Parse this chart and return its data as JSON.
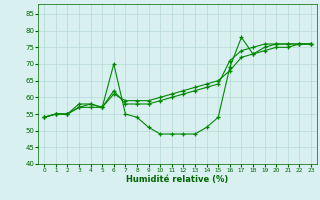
{
  "title": "",
  "xlabel": "Humidité relative (%)",
  "ylabel": "",
  "xlim": [
    -0.5,
    23.5
  ],
  "ylim": [
    40,
    88
  ],
  "yticks": [
    40,
    45,
    50,
    55,
    60,
    65,
    70,
    75,
    80,
    85
  ],
  "xticks": [
    0,
    1,
    2,
    3,
    4,
    5,
    6,
    7,
    8,
    9,
    10,
    11,
    12,
    13,
    14,
    15,
    16,
    17,
    18,
    19,
    20,
    21,
    22,
    23
  ],
  "bg_color": "#d8f0f0",
  "grid_color": "#b8d8d8",
  "line_color": "#008800",
  "line1": [
    54,
    55,
    55,
    58,
    58,
    57,
    70,
    55,
    54,
    51,
    49,
    49,
    49,
    49,
    51,
    54,
    69,
    78,
    73,
    75,
    76,
    76,
    76,
    76
  ],
  "line2": [
    54,
    55,
    55,
    57,
    58,
    57,
    62,
    58,
    58,
    58,
    59,
    60,
    61,
    62,
    63,
    64,
    71,
    74,
    75,
    76,
    76,
    76,
    76,
    76
  ],
  "line3": [
    54,
    55,
    55,
    57,
    57,
    57,
    61,
    59,
    59,
    59,
    60,
    61,
    62,
    63,
    64,
    65,
    68,
    72,
    73,
    74,
    75,
    75,
    76,
    76
  ]
}
